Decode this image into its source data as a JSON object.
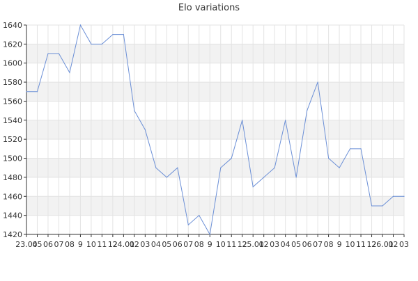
{
  "chart_data": {
    "type": "line",
    "title": "Elo variations",
    "xlabel": "",
    "ylabel": "",
    "ylim": [
      1420,
      1640
    ],
    "yticks": [
      1420,
      1440,
      1460,
      1480,
      1500,
      1520,
      1540,
      1560,
      1580,
      1600,
      1620,
      1640
    ],
    "grid": true,
    "band_color": "#f2f2f2",
    "line_color": "#6b8fd6",
    "x": [
      "23.04",
      "05",
      "06",
      "07",
      "08",
      "9",
      "10",
      "11",
      "12",
      "24.01",
      "02",
      "03",
      "04",
      "05",
      "06",
      "07",
      "08",
      "9",
      "10",
      "11",
      "12",
      "25.01",
      "02",
      "03",
      "04",
      "05",
      "06",
      "07",
      "08",
      "9",
      "10",
      "11",
      "12",
      "26.01",
      "02",
      "03"
    ],
    "series": [
      {
        "values": [
          1570,
          1570,
          1610,
          1610,
          1590,
          1640,
          1620,
          1620,
          1630,
          1630,
          1550,
          1530,
          1490,
          1480,
          1490,
          1430,
          1440,
          1420,
          1490,
          1500,
          1540,
          1470,
          1480,
          1490,
          1540,
          1480,
          1550,
          1580,
          1500,
          1490,
          1510,
          1510,
          1450,
          1450,
          1460,
          1460
        ]
      }
    ]
  }
}
